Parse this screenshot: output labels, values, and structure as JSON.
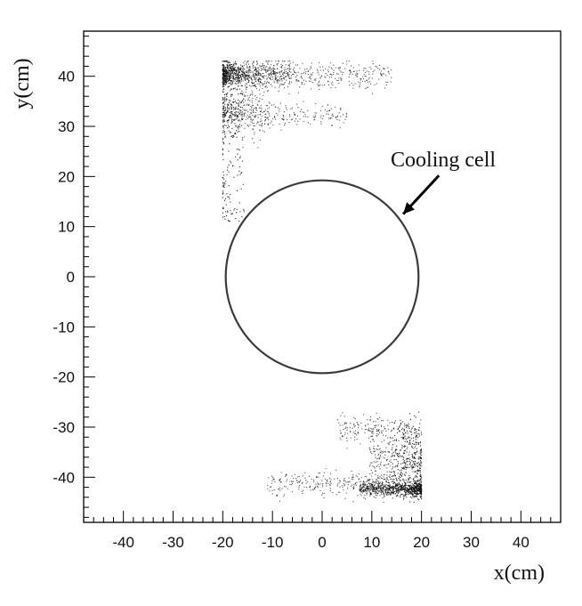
{
  "chart_data": {
    "type": "scatter",
    "title": "",
    "xlabel": "x(cm)",
    "ylabel": "y(cm)",
    "xlim": [
      -48,
      48
    ],
    "ylim": [
      -49,
      49
    ],
    "x_ticks": [
      -40,
      -30,
      -20,
      -10,
      0,
      10,
      20,
      30,
      40
    ],
    "x_tick_labels": [
      "-40",
      "-30",
      "-20",
      "-10",
      "0",
      "10",
      "20",
      "30",
      "40"
    ],
    "y_ticks": [
      40,
      30,
      20,
      10,
      0,
      -10,
      -20,
      -30,
      -40
    ],
    "y_tick_labels": [
      "40",
      "30",
      "20",
      "10",
      "0",
      "-10",
      "-20",
      "-30",
      "-40"
    ],
    "grid": false,
    "legend": "none",
    "point_color": "#111111",
    "annotation": {
      "text": "Cooling cell",
      "shape": "circle",
      "center": [
        0,
        0
      ],
      "radius": 19.4,
      "arrow_from": [
        23.5,
        20.2
      ],
      "arrow_to": [
        16.3,
        12.5
      ]
    },
    "series": [
      {
        "x_range": [
          -20,
          14
        ],
        "y_range": [
          11,
          43
        ],
        "dense_edge_x": -20,
        "dense_band_y": [
          39,
          42
        ],
        "secondary_band_y": [
          29,
          36
        ],
        "point_count": 1800
      },
      {
        "x_range": [
          -14,
          20
        ],
        "y_range": [
          -45,
          -27
        ],
        "dense_edge_x": 20,
        "dense_band_y": [
          -43,
          -42
        ],
        "secondary_band_y": [
          -40,
          -31
        ],
        "point_count": 1700
      }
    ]
  }
}
